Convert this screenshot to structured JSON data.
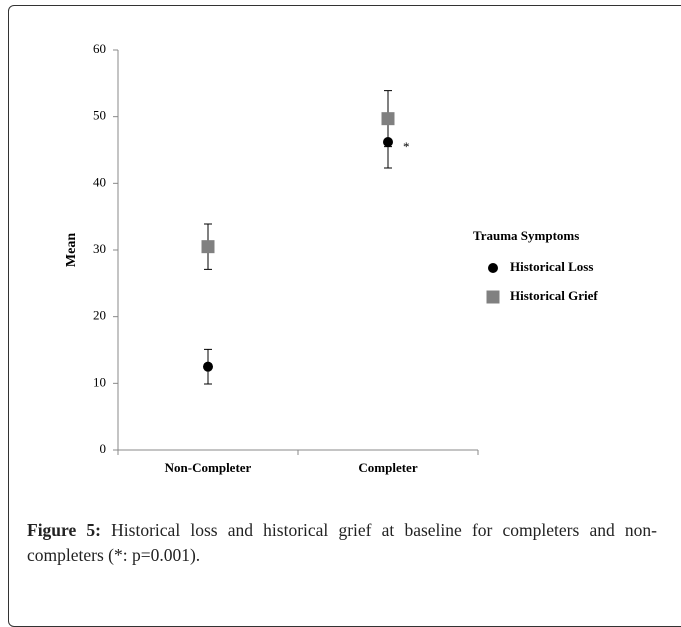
{
  "chart_data": {
    "type": "errorpoint",
    "categories": [
      "Non-Completer",
      "Completer"
    ],
    "y_label": "Mean",
    "ylim": [
      0,
      60
    ],
    "yticks": [
      0,
      10,
      20,
      30,
      40,
      50,
      60
    ],
    "legend_title": "Trauma Symptoms",
    "legend": "right",
    "series": [
      {
        "name": "Historical Loss",
        "color": "#000000",
        "marker": "circle",
        "values": [
          12.5,
          46.2
        ],
        "errors": [
          2.6,
          3.9
        ]
      },
      {
        "name": "Historical Grief",
        "color": "#808080",
        "marker": "square",
        "values": [
          30.5,
          49.7
        ],
        "errors": [
          3.4,
          4.2
        ]
      }
    ],
    "annotations": [
      {
        "text": "*"
      }
    ]
  },
  "caption": {
    "label": "Figure 5:",
    "text": "Historical loss and historical grief at baseline for completers and non-completers (*: p=0.001)."
  }
}
